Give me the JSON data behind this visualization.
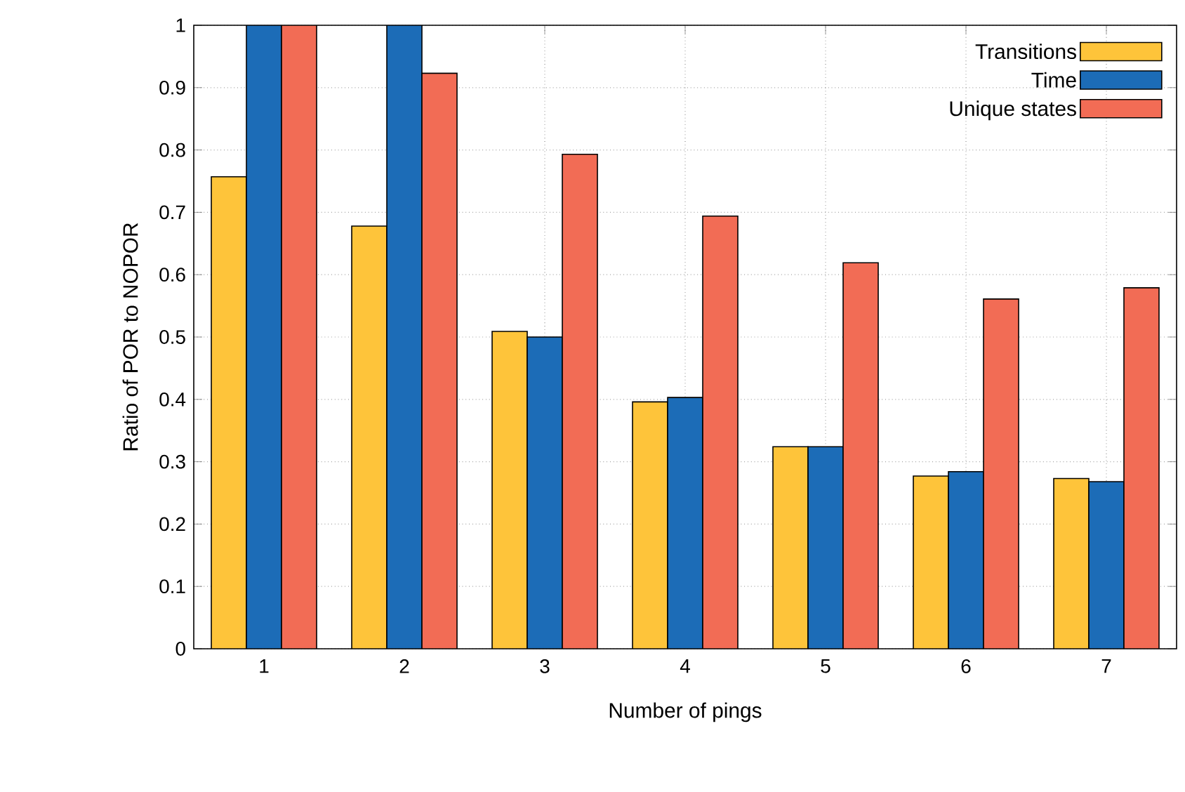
{
  "chart_data": {
    "type": "bar",
    "xlabel": "Number of pings",
    "ylabel": "Ratio of POR to NOPOR",
    "categories": [
      "1",
      "2",
      "3",
      "4",
      "5",
      "6",
      "7"
    ],
    "series": [
      {
        "name": "Transitions",
        "color": "#fec43a",
        "values": [
          0.757,
          0.678,
          0.509,
          0.396,
          0.324,
          0.277,
          0.273
        ]
      },
      {
        "name": "Time",
        "color": "#1c6cb7",
        "values": [
          1.0,
          1.0,
          0.5,
          0.403,
          0.324,
          0.284,
          0.268
        ]
      },
      {
        "name": "Unique states",
        "color": "#f26c55",
        "values": [
          1.0,
          0.923,
          0.793,
          0.694,
          0.619,
          0.561,
          0.579
        ]
      }
    ],
    "ylim": [
      0,
      1
    ],
    "yticks": [
      0,
      0.1,
      0.2,
      0.3,
      0.4,
      0.5,
      0.6,
      0.7,
      0.8,
      0.9,
      1
    ],
    "grid": true,
    "legend": "top right"
  }
}
